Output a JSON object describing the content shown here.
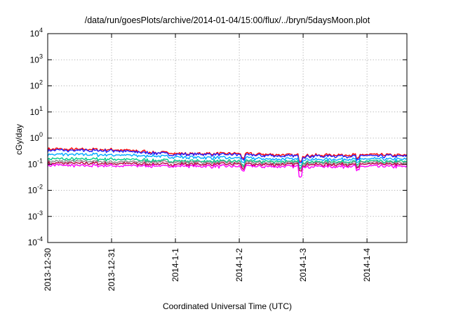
{
  "chart_data": {
    "type": "line",
    "title": "/data/run/goesPlots/archive/2014-01-04/15:00/flux/../bryn/5daysMoon.plot",
    "xlabel": "Coordinated Universal Time (UTC)",
    "ylabel": "cGy/day",
    "yscale": "log",
    "ylim": [
      0.0001,
      10000
    ],
    "xlim": [
      "2013-12-30 00:00",
      "2014-01-04 15:00"
    ],
    "grid": true,
    "legend": "none",
    "y_tick_labels": [
      {
        "base": "10",
        "exp": "-4"
      },
      {
        "base": "10",
        "exp": "-3"
      },
      {
        "base": "10",
        "exp": "-2"
      },
      {
        "base": "10",
        "exp": "-1"
      },
      {
        "base": "10",
        "exp": "0"
      },
      {
        "base": "10",
        "exp": "1"
      },
      {
        "base": "10",
        "exp": "2"
      },
      {
        "base": "10",
        "exp": "3"
      },
      {
        "base": "10",
        "exp": "4"
      }
    ],
    "x_tick_labels": [
      "2013-12-30",
      "2013-12-31",
      "2014-1-1",
      "2014-1-2",
      "2014-1-3",
      "2014-1-4"
    ],
    "x_days": [
      0,
      1,
      2,
      3,
      4,
      5,
      5.625
    ],
    "series": [
      {
        "color": "#ff0000",
        "values": [
          0.38,
          0.36,
          0.26,
          0.25,
          0.22,
          0.23,
          0.22
        ]
      },
      {
        "color": "#2222ff",
        "values": [
          0.34,
          0.33,
          0.24,
          0.23,
          0.2,
          0.21,
          0.2
        ]
      },
      {
        "color": "#00aaff",
        "values": [
          0.24,
          0.23,
          0.19,
          0.17,
          0.15,
          0.16,
          0.15
        ]
      },
      {
        "color": "#00cc88",
        "values": [
          0.16,
          0.155,
          0.135,
          0.13,
          0.125,
          0.13,
          0.125
        ]
      },
      {
        "color": "#888888",
        "values": [
          0.13,
          0.125,
          0.12,
          0.115,
          0.11,
          0.115,
          0.11
        ]
      },
      {
        "color": "#bb0044",
        "values": [
          0.11,
          0.105,
          0.1,
          0.1,
          0.097,
          0.1,
          0.097
        ]
      },
      {
        "color": "#ff00ff",
        "values": [
          0.09,
          0.088,
          0.085,
          0.083,
          0.08,
          0.083,
          0.08
        ]
      }
    ]
  }
}
